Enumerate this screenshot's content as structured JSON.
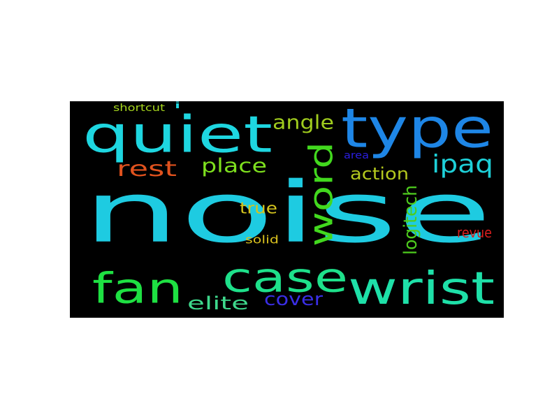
{
  "words": [
    {
      "text": "noise",
      "color": "#1ecbe1"
    },
    {
      "text": "type",
      "color": "#1e86e6"
    },
    {
      "text": "quiet",
      "color": "#1ed6e0"
    },
    {
      "text": "wrist",
      "color": "#1ee0a8"
    },
    {
      "text": "fan",
      "color": "#1ee042"
    },
    {
      "text": "case",
      "color": "#1ee08a"
    },
    {
      "text": "word",
      "color": "#42d81e"
    },
    {
      "text": "rest",
      "color": "#e0521e"
    },
    {
      "text": "place",
      "color": "#7ee01e"
    },
    {
      "text": "angle",
      "color": "#a0cc1e"
    },
    {
      "text": "ipaq",
      "color": "#1ed0d8"
    },
    {
      "text": "action",
      "color": "#b4c81e"
    },
    {
      "text": "elite",
      "color": "#3ed88c"
    },
    {
      "text": "cover",
      "color": "#3a2ee6"
    },
    {
      "text": "logitech",
      "color": "#4ecc1e"
    },
    {
      "text": "true",
      "color": "#d4c41e"
    },
    {
      "text": "revue",
      "color": "#d81e1e"
    },
    {
      "text": "solid",
      "color": "#d8c01e"
    },
    {
      "text": "shortcut",
      "color": "#a8d81e"
    },
    {
      "text": "area",
      "color": "#2a1ee0"
    },
    {
      "text": "i",
      "color": "#1ed6e0"
    }
  ]
}
